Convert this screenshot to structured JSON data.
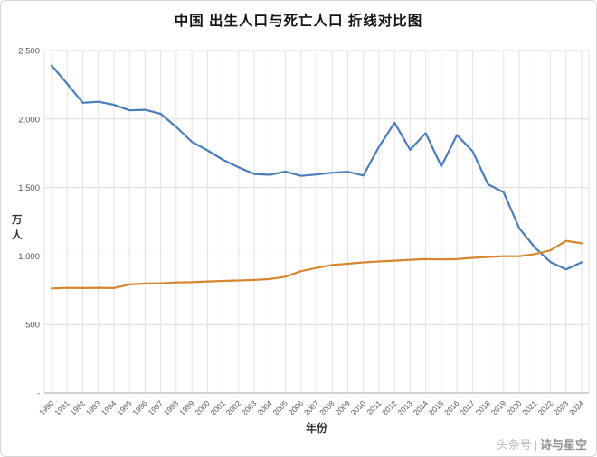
{
  "title": "中国 出生人口与死亡人口 折线对比图",
  "watermark": {
    "prefix": "头条号",
    "separator": "|",
    "name": "诗与星空"
  },
  "chart_data": {
    "type": "line",
    "title": "中国 出生人口与死亡人口 折线对比图",
    "xlabel": "年份",
    "ylabel": "万人",
    "ylim": [
      0,
      2500
    ],
    "grid": true,
    "legend": "none",
    "x": [
      1990,
      1991,
      1992,
      1993,
      1994,
      1995,
      1996,
      1997,
      1998,
      1999,
      2000,
      2001,
      2002,
      2003,
      2004,
      2005,
      2006,
      2007,
      2008,
      2009,
      2010,
      2011,
      2012,
      2013,
      2014,
      2015,
      2016,
      2017,
      2018,
      2019,
      2020,
      2021,
      2022,
      2023,
      2024
    ],
    "y_ticks": {
      "values": [
        2500,
        2000,
        1500,
        1000,
        500,
        0
      ],
      "labels": [
        "2,500",
        "2,000",
        "1,500",
        "1,000",
        "500",
        "-"
      ]
    },
    "series": [
      {
        "name": "出生人口",
        "color": "#4a7ebb",
        "values": [
          2391,
          2258,
          2119,
          2126,
          2104,
          2063,
          2067,
          2038,
          1942,
          1834,
          1771,
          1702,
          1647,
          1599,
          1593,
          1617,
          1585,
          1595,
          1608,
          1615,
          1588,
          1797,
          1973,
          1776,
          1897,
          1655,
          1883,
          1765,
          1523,
          1465,
          1202,
          1062,
          956,
          902,
          954
        ]
      },
      {
        "name": "死亡人口",
        "color": "#d7862f",
        "values": [
          763,
          767,
          766,
          768,
          766,
          792,
          799,
          801,
          807,
          809,
          814,
          818,
          821,
          825,
          832,
          849,
          889,
          913,
          935,
          943,
          953,
          960,
          966,
          972,
          977,
          975,
          977,
          986,
          993,
          998,
          998,
          1014,
          1041,
          1110,
          1093
        ]
      }
    ]
  }
}
